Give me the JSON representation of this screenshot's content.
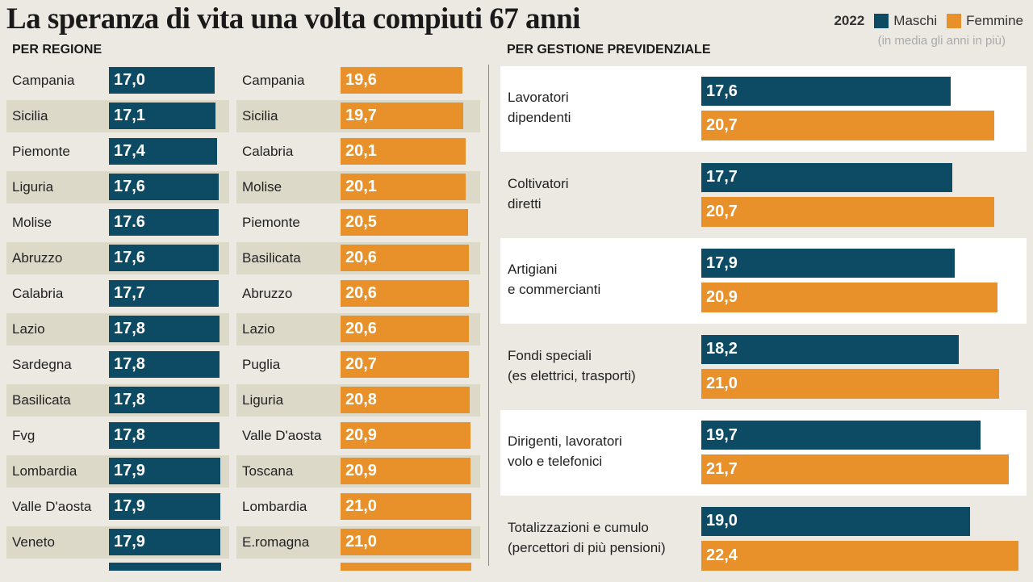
{
  "chart_data": [
    {
      "type": "bar",
      "title": "La speranza di vita una volta compiuti 67 anni",
      "section": "PER REGIONE",
      "legend": {
        "year": "2022",
        "male": "Maschi",
        "female": "Femmine",
        "note": "(in media gli anni in più)"
      },
      "colors": {
        "male": "#0d4a63",
        "female": "#e8912a"
      },
      "male": [
        {
          "region": "Campania",
          "value": 17.0,
          "label": "17,0"
        },
        {
          "region": "Sicilia",
          "value": 17.1,
          "label": "17,1"
        },
        {
          "region": "Piemonte",
          "value": 17.4,
          "label": "17,4"
        },
        {
          "region": "Liguria",
          "value": 17.6,
          "label": "17,6"
        },
        {
          "region": "Molise",
          "value": 17.6,
          "label": "17.6"
        },
        {
          "region": "Abruzzo",
          "value": 17.6,
          "label": "17,6"
        },
        {
          "region": "Calabria",
          "value": 17.7,
          "label": "17,7"
        },
        {
          "region": "Lazio",
          "value": 17.8,
          "label": "17,8"
        },
        {
          "region": "Sardegna",
          "value": 17.8,
          "label": "17,8"
        },
        {
          "region": "Basilicata",
          "value": 17.8,
          "label": "17,8"
        },
        {
          "region": "Fvg",
          "value": 17.8,
          "label": "17,8"
        },
        {
          "region": "Lombardia",
          "value": 17.9,
          "label": "17,9"
        },
        {
          "region": "Valle D'aosta",
          "value": 17.9,
          "label": "17,9"
        },
        {
          "region": "Veneto",
          "value": 17.9,
          "label": "17,9"
        }
      ],
      "female": [
        {
          "region": "Campania",
          "value": 19.6,
          "label": "19,6"
        },
        {
          "region": "Sicilia",
          "value": 19.7,
          "label": "19,7"
        },
        {
          "region": "Calabria",
          "value": 20.1,
          "label": "20,1"
        },
        {
          "region": "Molise",
          "value": 20.1,
          "label": "20,1"
        },
        {
          "region": "Piemonte",
          "value": 20.5,
          "label": "20,5"
        },
        {
          "region": "Basilicata",
          "value": 20.6,
          "label": "20,6"
        },
        {
          "region": "Abruzzo",
          "value": 20.6,
          "label": "20,6"
        },
        {
          "region": "Lazio",
          "value": 20.6,
          "label": "20,6"
        },
        {
          "region": "Puglia",
          "value": 20.7,
          "label": "20,7"
        },
        {
          "region": "Liguria",
          "value": 20.8,
          "label": "20,8"
        },
        {
          "region": "Valle D'aosta",
          "value": 20.9,
          "label": "20,9"
        },
        {
          "region": "Toscana",
          "value": 20.9,
          "label": "20,9"
        },
        {
          "region": "Lombardia",
          "value": 21.0,
          "label": "21,0"
        },
        {
          "region": "E.romagna",
          "value": 21.0,
          "label": "21,0"
        }
      ]
    },
    {
      "type": "bar",
      "section": "PER GESTIONE PREVIDENZIALE",
      "categories": [
        {
          "label": "Lavoratori\ndipendenti",
          "male": 17.6,
          "male_label": "17,6",
          "female": 20.7,
          "female_label": "20,7"
        },
        {
          "label": "Coltivatori\ndiretti",
          "male": 17.7,
          "male_label": "17,7",
          "female": 20.7,
          "female_label": "20,7"
        },
        {
          "label": "Artigiani\ne commercianti",
          "male": 17.9,
          "male_label": "17,9",
          "female": 20.9,
          "female_label": "20,9"
        },
        {
          "label": "Fondi speciali\n(es elettrici, trasporti)",
          "male": 18.2,
          "male_label": "18,2",
          "female": 21.0,
          "female_label": "21,0"
        },
        {
          "label": "Dirigenti, lavoratori\nvolo e telefonici",
          "male": 19.7,
          "male_label": "19,7",
          "female": 21.7,
          "female_label": "21,7"
        },
        {
          "label": "Totalizzazioni e cumulo\n(percettori di più pensioni)",
          "male": 19.0,
          "male_label": "19,0",
          "female": 22.4,
          "female_label": "22,4"
        }
      ]
    }
  ]
}
